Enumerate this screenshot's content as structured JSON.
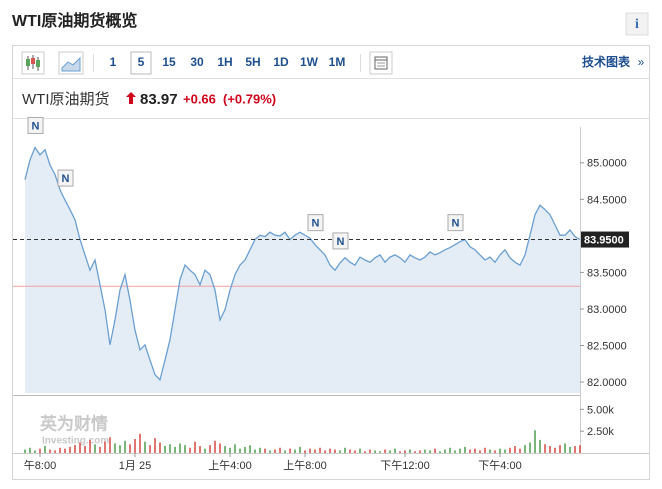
{
  "header": {
    "title": "WTI原油期货概览",
    "info": "i"
  },
  "toolbar": {
    "intervals": [
      "1",
      "5",
      "15",
      "30",
      "1H",
      "5H",
      "1D",
      "1W",
      "1M"
    ],
    "selected": "5",
    "link": "技术图表",
    "link_arrow": "»"
  },
  "quote": {
    "name": "WTI原油期货",
    "price": "83.97",
    "change": "+0.66",
    "change_pct": "(+0.79%)"
  },
  "watermark": {
    "brand": "英为财情",
    "site": "Investing.com"
  },
  "chart_data": {
    "type": "line",
    "categories": [
      null,
      null,
      null,
      "午8:00",
      null,
      null,
      null,
      null,
      null,
      null,
      null,
      null,
      null,
      null,
      null,
      null,
      null,
      null,
      null,
      null,
      null,
      null,
      "1月 25",
      null,
      null,
      null,
      null,
      null,
      null,
      null,
      null,
      null,
      null,
      null,
      null,
      null,
      null,
      null,
      null,
      null,
      null,
      "上午4:00",
      null,
      null,
      null,
      null,
      null,
      null,
      null,
      null,
      null,
      null,
      null,
      null,
      null,
      null,
      "上午8:00",
      null,
      null,
      null,
      null,
      null,
      null,
      null,
      null,
      null,
      null,
      null,
      null,
      null,
      null,
      null,
      null,
      null,
      null,
      null,
      "下午12:00",
      null,
      null,
      null,
      null,
      null,
      null,
      null,
      null,
      null,
      null,
      null,
      null,
      null,
      null,
      null,
      null,
      null,
      null,
      "下午4:00",
      null,
      null,
      null,
      null,
      null,
      null,
      null,
      null,
      null,
      null,
      null,
      null,
      null,
      null,
      null,
      null
    ],
    "series": [
      {
        "name": "WTI原油期货",
        "color": "#6a9fd0",
        "fill": "#e4edf6",
        "values": [
          84.77,
          85.04,
          85.21,
          85.11,
          85.18,
          84.97,
          84.84,
          84.63,
          84.49,
          84.36,
          84.22,
          83.95,
          83.74,
          83.53,
          83.67,
          83.33,
          82.99,
          82.51,
          82.85,
          83.26,
          83.47,
          83.12,
          82.71,
          82.44,
          82.51,
          82.3,
          82.1,
          82.03,
          82.3,
          82.58,
          82.99,
          83.4,
          83.6,
          83.53,
          83.47,
          83.33,
          83.53,
          83.47,
          83.26,
          82.85,
          82.99,
          83.26,
          83.47,
          83.6,
          83.67,
          83.81,
          83.95,
          84.01,
          83.99,
          84.05,
          84.01,
          84.0,
          84.05,
          83.95,
          84.01,
          84.05,
          84.01,
          83.97,
          83.88,
          83.81,
          83.74,
          83.6,
          83.53,
          83.63,
          83.7,
          83.64,
          83.6,
          83.71,
          83.67,
          83.64,
          83.7,
          83.74,
          83.64,
          83.71,
          83.74,
          83.7,
          83.64,
          83.74,
          83.7,
          83.67,
          83.71,
          83.78,
          83.74,
          83.77,
          83.81,
          83.84,
          83.88,
          83.92,
          83.95,
          83.85,
          83.81,
          83.74,
          83.67,
          83.71,
          83.64,
          83.74,
          83.81,
          83.7,
          83.64,
          83.6,
          83.74,
          84.01,
          84.29,
          84.42,
          84.36,
          84.29,
          84.15,
          84.01,
          84.01,
          84.08,
          83.99,
          83.95
        ]
      },
      {
        "name": "成交量",
        "axis": "y2",
        "up_color": "#5aa55a",
        "down_color": "#d9534f",
        "values": [
          0.4,
          0.6,
          0.3,
          0.5,
          0.8,
          0.4,
          0.3,
          0.6,
          0.5,
          0.7,
          0.9,
          1.2,
          0.8,
          1.5,
          1.0,
          0.7,
          1.3,
          1.8,
          1.1,
          0.9,
          1.4,
          1.0,
          1.6,
          2.2,
          1.3,
          0.9,
          1.7,
          1.2,
          0.8,
          1.0,
          0.7,
          1.1,
          0.9,
          0.6,
          1.3,
          0.8,
          0.5,
          0.9,
          1.4,
          1.1,
          0.8,
          0.6,
          1.0,
          0.5,
          0.7,
          0.9,
          0.4,
          0.6,
          0.5,
          0.3,
          0.4,
          0.6,
          0.3,
          0.5,
          0.4,
          0.7,
          0.3,
          0.5,
          0.4,
          0.6,
          0.3,
          0.5,
          0.4,
          0.3,
          0.6,
          0.4,
          0.3,
          0.5,
          0.2,
          0.4,
          0.3,
          0.2,
          0.4,
          0.3,
          0.5,
          0.2,
          0.3,
          0.4,
          0.2,
          0.3,
          0.4,
          0.3,
          0.5,
          0.2,
          0.4,
          0.6,
          0.3,
          0.5,
          0.7,
          0.4,
          0.5,
          0.3,
          0.6,
          0.4,
          0.3,
          0.5,
          0.4,
          0.6,
          0.8,
          0.5,
          0.9,
          1.2,
          2.6,
          1.5,
          1.0,
          0.8,
          0.6,
          0.9,
          1.1,
          0.7,
          0.8,
          0.9
        ]
      }
    ],
    "ylim": [
      81.85,
      85.49
    ],
    "yticks": [
      {
        "value": 82,
        "label": "82.0000"
      },
      {
        "value": 82.5,
        "label": "82.5000"
      },
      {
        "value": 83,
        "label": "83.0000"
      },
      {
        "value": 83.5,
        "label": "83.5000"
      },
      {
        "value": 84.5,
        "label": "84.5000"
      },
      {
        "value": 85,
        "label": "85.0000"
      }
    ],
    "y2lim": [
      0,
      6.3
    ],
    "y2ticks": [
      {
        "value": 2.5,
        "label": "2.50k"
      },
      {
        "value": 5,
        "label": "5.00k"
      }
    ],
    "last_price": {
      "value": 83.95,
      "label": "83.9500",
      "color": "#222222"
    },
    "prev_close": {
      "value": 83.31,
      "color": "#f2a0a0"
    },
    "grid": false,
    "annotations": [
      {
        "text": "N",
        "index": 2
      },
      {
        "text": "N",
        "index": 8
      },
      {
        "text": "N",
        "index": 58
      },
      {
        "text": "N",
        "index": 63
      },
      {
        "text": "N",
        "index": 86
      }
    ]
  }
}
